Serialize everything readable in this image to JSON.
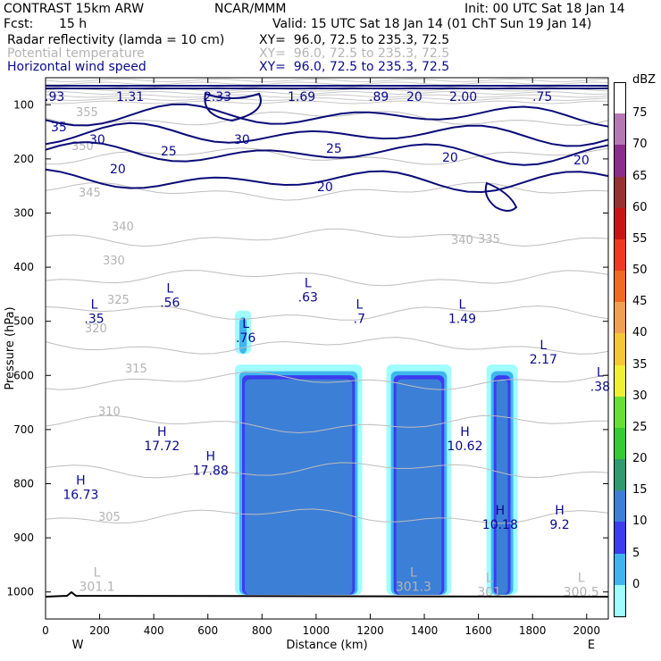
{
  "header": {
    "model": "CONTRAST 15km ARW",
    "agency": "NCAR/MMM",
    "init": "Init: 00 UTC Sat 18 Jan 14",
    "fcst_label": "Fcst:",
    "fcst_value": "15 h",
    "valid": "Valid: 15 UTC Sat 18 Jan 14 (01 ChT Sun 19 Jan 14)",
    "fields": [
      {
        "name": "Radar reflectivity (lamda = 10 cm)",
        "xy": "XY=  96.0, 72.5 to 235.3, 72.5",
        "color": "#000000"
      },
      {
        "name": "Potential temperature",
        "xy": "XY=  96.0, 72.5 to 235.3, 72.5",
        "color": "#b4b4b4"
      },
      {
        "name": "Horizontal wind speed",
        "xy": "XY=  96.0, 72.5 to 235.3, 72.5",
        "color": "#0a0a8c"
      }
    ]
  },
  "chart_data": {
    "type": "heatmap",
    "xlabel": "Distance (km)",
    "ylabel": "Pressure (hPa)",
    "xlim": [
      0,
      2080
    ],
    "ylim": [
      1050,
      50
    ],
    "x_ticks": [
      0,
      200,
      400,
      600,
      800,
      1000,
      1200,
      1400,
      1600,
      1800,
      2000
    ],
    "y_ticks": [
      100,
      200,
      300,
      400,
      500,
      600,
      700,
      800,
      900,
      1000
    ],
    "left_end": "W",
    "right_end": "E",
    "colorbar": {
      "unit": "dBZ",
      "levels": [
        0,
        5,
        10,
        15,
        20,
        25,
        30,
        35,
        40,
        45,
        50,
        55,
        60,
        65,
        70,
        75
      ],
      "colors": [
        "#9ffcff",
        "#3fb5f0",
        "#3c3cf0",
        "#3c7fd6",
        "#2f9b6e",
        "#33cc33",
        "#66e033",
        "#f0f033",
        "#f5c833",
        "#f0a050",
        "#f06a1f",
        "#f03a1f",
        "#c81414",
        "#963232",
        "#8c2c8c",
        "#b478b4"
      ]
    },
    "reflectivity_cells": [
      {
        "x_start": 700,
        "x_end": 760,
        "p_top": 480,
        "p_bot": 560,
        "max_dbz": 10
      },
      {
        "x_start": 700,
        "x_end": 1170,
        "p_top": 580,
        "p_bot": 1005,
        "max_dbz": 20
      },
      {
        "x_start": 1260,
        "x_end": 1500,
        "p_top": 580,
        "p_bot": 1005,
        "max_dbz": 20
      },
      {
        "x_start": 1630,
        "x_end": 1745,
        "p_top": 580,
        "p_bot": 1005,
        "max_dbz": 20
      }
    ],
    "theta_contours": [
      {
        "value": 355,
        "p": 125
      },
      {
        "value": 350,
        "p": 195
      },
      {
        "value": 345,
        "p": 260
      },
      {
        "value": 340,
        "p": 345
      },
      {
        "value": 335,
        "p": 420
      },
      {
        "value": 330,
        "p": 485
      },
      {
        "value": 325,
        "p": 545
      },
      {
        "value": 320,
        "p": 610
      },
      {
        "value": 315,
        "p": 690
      },
      {
        "value": 310,
        "p": 775
      },
      {
        "value": 305,
        "p": 860
      }
    ],
    "theta_labels": [
      "355",
      "350",
      "345",
      "340",
      "340",
      "335",
      "330",
      "325",
      "320",
      "315",
      "310",
      "305"
    ],
    "wind_labels": [
      ".93",
      "1.31",
      "2.33",
      "1.69",
      ".89",
      "20",
      "2.00",
      ".75",
      "35",
      "30",
      "30",
      "25",
      "25",
      "20",
      "20",
      "20",
      "20"
    ],
    "wind_contours": [
      {
        "value": 35,
        "p": 120
      },
      {
        "value": 30,
        "p": 155
      },
      {
        "value": 25,
        "p": 190
      },
      {
        "value": 20,
        "p": 240
      }
    ],
    "extrema": [
      {
        "kind": "L",
        "value": ".35",
        "x": 180,
        "p": 490
      },
      {
        "kind": "L",
        "value": ".56",
        "x": 460,
        "p": 460
      },
      {
        "kind": "L",
        "value": ".63",
        "x": 970,
        "p": 450
      },
      {
        "kind": "L",
        "value": ".7",
        "x": 1160,
        "p": 490
      },
      {
        "kind": "L",
        "value": "1.49",
        "x": 1540,
        "p": 490
      },
      {
        "kind": "L",
        "value": ".76",
        "x": 740,
        "p": 525
      },
      {
        "kind": "L",
        "value": "2.17",
        "x": 1840,
        "p": 565
      },
      {
        "kind": "L",
        "value": ".38",
        "x": 2050,
        "p": 615
      },
      {
        "kind": "H",
        "value": "17.72",
        "x": 430,
        "p": 725
      },
      {
        "kind": "H",
        "value": "17.88",
        "x": 610,
        "p": 770
      },
      {
        "kind": "H",
        "value": "16.73",
        "x": 130,
        "p": 815
      },
      {
        "kind": "H",
        "value": "10.62",
        "x": 1550,
        "p": 725
      },
      {
        "kind": "H",
        "value": "10.18",
        "x": 1680,
        "p": 870
      },
      {
        "kind": "H",
        "value": "9.2",
        "x": 1900,
        "p": 870
      },
      {
        "kind": "L",
        "value": "301.1",
        "x": 190,
        "p": 985
      },
      {
        "kind": "L",
        "value": "301.3",
        "x": 1360,
        "p": 985
      },
      {
        "kind": "L",
        "value": "301",
        "x": 1640,
        "p": 995
      },
      {
        "kind": "L",
        "value": "300.5",
        "x": 1980,
        "p": 995
      }
    ]
  }
}
